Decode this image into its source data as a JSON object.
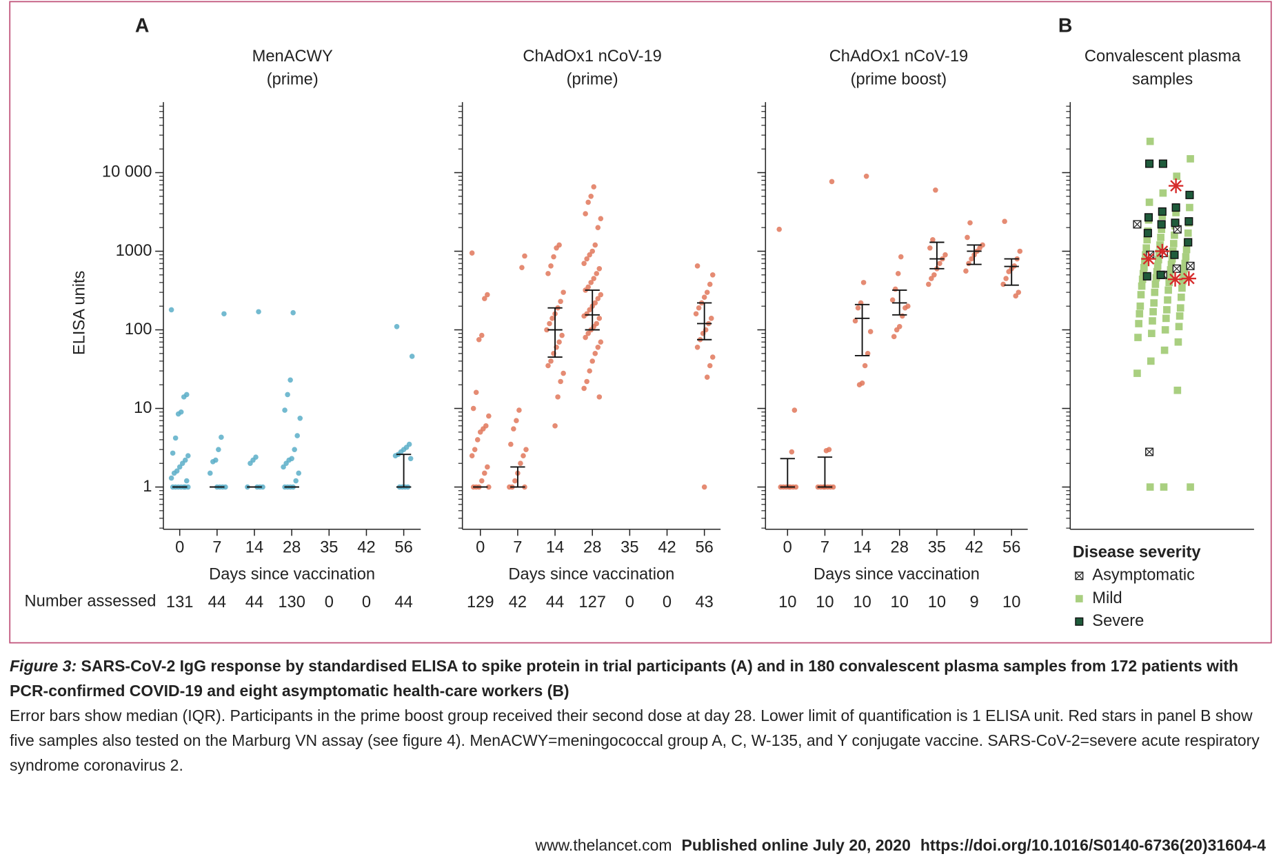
{
  "panel_labels": [
    "A",
    "B"
  ],
  "chart_data": [
    {
      "type": "strip",
      "title": [
        "MenACWY",
        "(prime)"
      ],
      "ylabel": "ELISA units",
      "xlabel": "Days since vaccination",
      "number_label": "Number  assessed",
      "log": true,
      "color": "#5aaec8",
      "tick_labels": true,
      "ylim": [
        0.29,
        79000
      ],
      "yticks": [
        1,
        10,
        100,
        1000,
        {
          "value": 10000,
          "label": "10 000"
        }
      ],
      "categories": [
        "0",
        "7",
        "14",
        "28",
        "35",
        "42",
        "56"
      ],
      "n": [
        131,
        44,
        44,
        130,
        0,
        0,
        44
      ],
      "points": [
        [
          180,
          15,
          14,
          9,
          8.5,
          4.2,
          2.7,
          2.5,
          2.2,
          2.0,
          1.8,
          1.6,
          1.5,
          1.3,
          1.2,
          1,
          1,
          1,
          1,
          1,
          1,
          1
        ],
        [
          160,
          4.3,
          3,
          2.2,
          2.1,
          1.5,
          1,
          1,
          1,
          1
        ],
        [
          170,
          2.4,
          2.2,
          2,
          1,
          1,
          1,
          1
        ],
        [
          165,
          23,
          15,
          9.5,
          7.5,
          4.5,
          3,
          2.3,
          2.2,
          2,
          1.8,
          1.5,
          1.2,
          1,
          1,
          1,
          1
        ],
        [],
        [],
        [
          110,
          46,
          3.5,
          3.2,
          3,
          2.8,
          2.6,
          2.5,
          2.3,
          1,
          1,
          1,
          1
        ]
      ],
      "median": [
        1,
        1,
        1,
        1,
        null,
        null,
        1
      ],
      "q1": [
        1,
        1,
        1,
        1,
        null,
        null,
        1
      ],
      "q3": [
        1,
        1,
        1,
        1,
        null,
        null,
        2.6
      ]
    },
    {
      "type": "strip",
      "title": [
        "ChAdOx1 nCoV-19",
        "(prime)"
      ],
      "xlabel": "Days since vaccination",
      "log": true,
      "color": "#e0775a",
      "tick_labels": false,
      "ylim": [
        0.29,
        79000
      ],
      "yticks": [
        1,
        10,
        100,
        1000,
        10000
      ],
      "categories": [
        "0",
        "7",
        "14",
        "28",
        "35",
        "42",
        "56"
      ],
      "n": [
        129,
        42,
        44,
        127,
        0,
        0,
        43
      ],
      "points": [
        [
          950,
          280,
          250,
          85,
          75,
          16,
          10,
          8,
          6,
          5.5,
          5,
          4,
          3,
          2.5,
          1.8,
          1.5,
          1.2,
          1,
          1,
          1,
          1
        ],
        [
          870,
          620,
          9.5,
          7,
          5.5,
          3.5,
          3,
          2.5,
          2,
          1.5,
          1.2,
          1,
          1,
          1
        ],
        [
          1200,
          1100,
          850,
          650,
          520,
          300,
          230,
          190,
          160,
          140,
          120,
          100,
          85,
          70,
          60,
          50,
          40,
          35,
          28,
          22,
          14,
          6
        ],
        [
          6600,
          5000,
          4200,
          3000,
          2600,
          2000,
          1200,
          1000,
          900,
          800,
          700,
          600,
          520,
          450,
          400,
          350,
          320,
          280,
          250,
          220,
          200,
          180,
          160,
          150,
          140,
          120,
          110,
          100,
          90,
          80,
          70,
          60,
          50,
          40,
          30,
          22,
          18,
          14
        ],
        [],
        [],
        [
          650,
          500,
          380,
          300,
          260,
          220,
          190,
          160,
          140,
          120,
          100,
          90,
          75,
          60,
          45,
          35,
          25,
          1
        ]
      ],
      "median": [
        1,
        1,
        100,
        155,
        null,
        null,
        120
      ],
      "q1": [
        1,
        1,
        45,
        100,
        null,
        null,
        75
      ],
      "q3": [
        1,
        1.8,
        190,
        320,
        null,
        null,
        220
      ]
    },
    {
      "type": "strip",
      "title": [
        "ChAdOx1 nCoV-19",
        "(prime boost)"
      ],
      "xlabel": "Days since vaccination",
      "log": true,
      "color": "#e0775a",
      "tick_labels": false,
      "ylim": [
        0.29,
        79000
      ],
      "yticks": [
        1,
        10,
        100,
        1000,
        10000
      ],
      "categories": [
        "0",
        "7",
        "14",
        "28",
        "35",
        "42",
        "56"
      ],
      "n": [
        10,
        10,
        10,
        10,
        10,
        9,
        10
      ],
      "points": [
        [
          1900,
          9.5,
          2.8,
          1,
          1,
          1,
          1,
          1,
          1,
          1
        ],
        [
          7700,
          3,
          2.9,
          1,
          1,
          1,
          1,
          1,
          1,
          1
        ],
        [
          9000,
          400,
          220,
          190,
          130,
          95,
          50,
          35,
          21,
          20
        ],
        [
          850,
          520,
          330,
          240,
          200,
          190,
          150,
          110,
          100,
          82
        ],
        [
          6000,
          1400,
          1100,
          900,
          800,
          700,
          600,
          500,
          450,
          380
        ],
        [
          2300,
          1500,
          1200,
          1100,
          1000,
          900,
          800,
          700,
          560
        ],
        [
          2400,
          1000,
          800,
          650,
          600,
          550,
          450,
          380,
          300,
          270
        ]
      ],
      "median": [
        1,
        1,
        140,
        220,
        800,
        1000,
        640
      ],
      "q1": [
        1,
        1,
        47,
        155,
        600,
        680,
        370
      ],
      "q3": [
        2.3,
        2.4,
        210,
        320,
        1300,
        1200,
        800
      ]
    },
    {
      "type": "scatter",
      "title": [
        "Convalescent plasma",
        "samples"
      ],
      "log": true,
      "tick_labels": false,
      "ylim": [
        0.29,
        79000
      ],
      "yticks": [
        1,
        10,
        100,
        1000,
        10000
      ],
      "legend_title": "Disease severity",
      "series": [
        {
          "name": "Asymptomatic",
          "color": "#ffffff",
          "marker": "crossed-square",
          "values": [
            2200,
            1900,
            950,
            900,
            650,
            600,
            500,
            2.8
          ]
        },
        {
          "name": "Mild",
          "color": "#a9cf80",
          "marker": "square",
          "values": [
            25000,
            15000,
            9000,
            5500,
            4200,
            3600,
            3100,
            2800,
            2500,
            2300,
            2100,
            1900,
            1800,
            1700,
            1600,
            1500,
            1400,
            1300,
            1250,
            1200,
            1100,
            1050,
            1000,
            950,
            900,
            850,
            800,
            780,
            750,
            700,
            680,
            650,
            620,
            600,
            580,
            550,
            520,
            500,
            480,
            460,
            440,
            420,
            400,
            380,
            360,
            340,
            320,
            300,
            280,
            260,
            240,
            220,
            200,
            190,
            180,
            170,
            160,
            150,
            140,
            130,
            120,
            110,
            100,
            90,
            80,
            70,
            55,
            40,
            28,
            17,
            1,
            1,
            1
          ]
        },
        {
          "name": "Severe",
          "color": "#1f5b3b",
          "marker": "square",
          "values": [
            13000,
            13000,
            5200,
            3600,
            3200,
            2700,
            2400,
            2300,
            2200,
            1700,
            1300,
            900,
            500,
            480
          ]
        },
        {
          "color": "#d62a2a",
          "marker": "star",
          "values": [
            6800,
            1000,
            800,
            450,
            440
          ]
        }
      ]
    }
  ],
  "caption": {
    "label": "Figure 3:",
    "title": "SARS-CoV-2 IgG response by standardised ELISA to spike protein in trial participants (A) and in 180 convalescent plasma samples from 172 patients with PCR-confirmed COVID-19 and eight asymptomatic health-care workers (B)",
    "text": "Error bars show median (IQR). Participants in the prime boost group received their second dose at day 28. Lower limit of quantification is 1 ELISA unit. Red stars in panel B show five samples also tested on the Marburg VN assay (see figure 4). MenACWY=meningococcal group A, C, W-135, and Y conjugate vaccine. SARS-CoV-2=severe acute respiratory syndrome coronavirus 2."
  },
  "footer": {
    "site": "www.thelancet.com",
    "published": "Published online July 20, 2020",
    "doi": "https://doi.org/10.1016/S0140-6736(20)31604-4"
  }
}
